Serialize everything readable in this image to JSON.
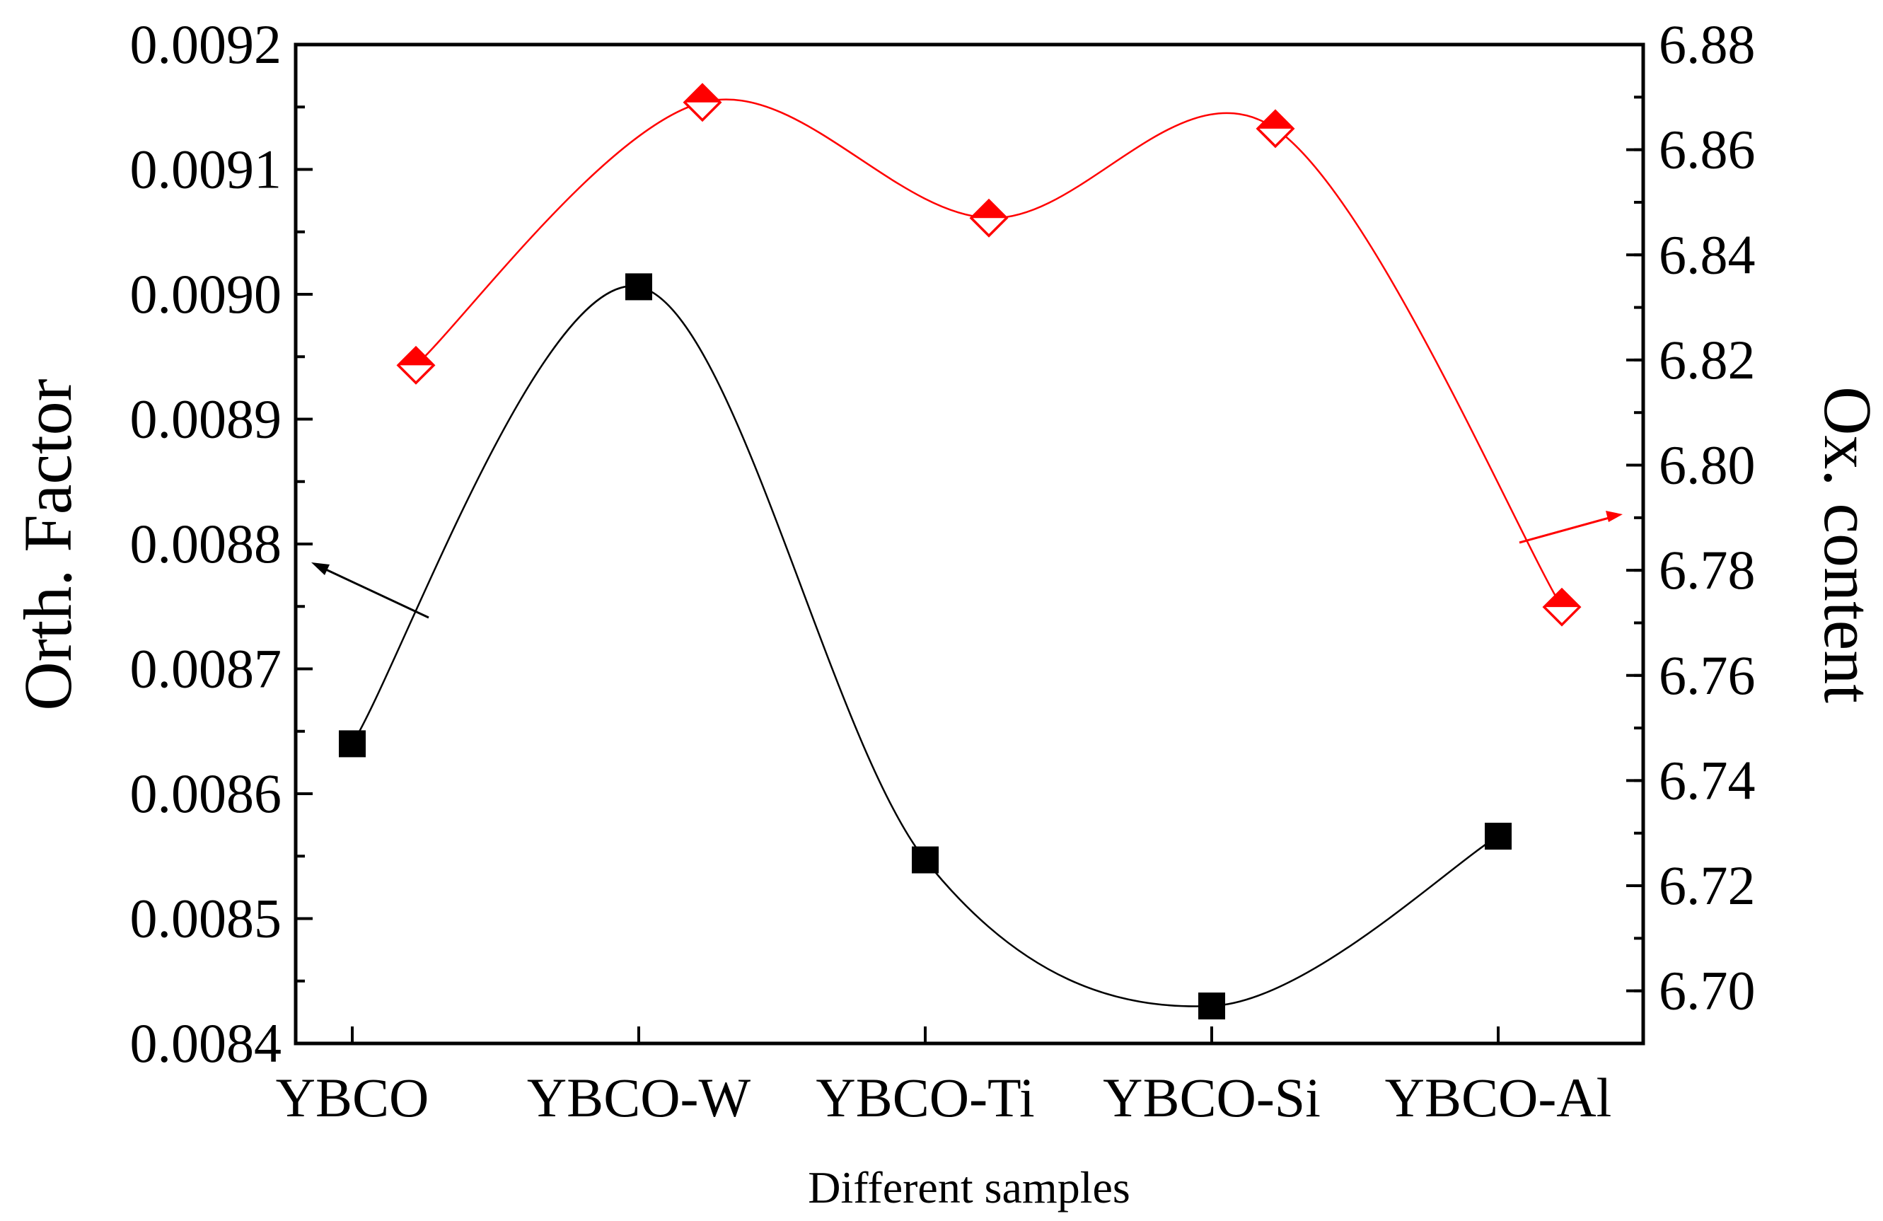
{
  "chart_data": {
    "type": "scatter",
    "xlabel": "Different samples",
    "ylabel_left": "Orth. Factor",
    "ylabel_right": "Ox. content",
    "categories": [
      "YBCO",
      "YBCO-W",
      "YBCO-Ti",
      "YBCO-Si",
      "YBCO-Al"
    ],
    "ylim_left": [
      0.0084,
      0.0092
    ],
    "ylim_right": [
      6.69,
      6.88
    ],
    "yticks_left": [
      "0.0084",
      "0.0085",
      "0.0086",
      "0.0087",
      "0.0088",
      "0.0089",
      "0.0090",
      "0.0091",
      "0.0092"
    ],
    "yticks_right": [
      "6.70",
      "6.72",
      "6.74",
      "6.76",
      "6.78",
      "6.80",
      "6.82",
      "6.84",
      "6.86",
      "6.88"
    ],
    "series": [
      {
        "name": "Orth. Factor",
        "axis": "left",
        "marker": "square",
        "color": "#000000",
        "values": [
          0.00864,
          0.009006,
          0.008547,
          0.00843,
          0.008566
        ],
        "fit_line": true
      },
      {
        "name": "Ox. content",
        "axis": "right",
        "marker": "half-filled-diamond",
        "color": "#ff0000",
        "values": [
          6.819,
          6.869,
          6.847,
          6.864,
          6.773
        ],
        "fit_line": true
      }
    ],
    "annotations": [
      {
        "type": "arrow",
        "points_to": "left axis",
        "color": "#000000"
      },
      {
        "type": "arrow",
        "points_to": "right axis",
        "color": "#ff0000"
      }
    ]
  }
}
